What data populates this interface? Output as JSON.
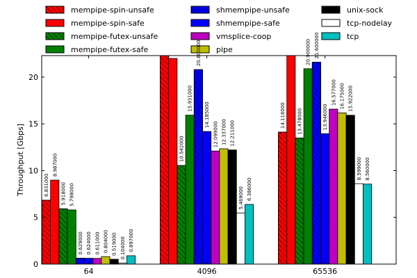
{
  "chart_data": {
    "type": "bar",
    "title": "",
    "xlabel": "",
    "ylabel": "Throughput [Gbps]",
    "categories": [
      "64",
      "4096",
      "65536"
    ],
    "ylim": [
      0,
      22.3
    ],
    "yticks": [
      0,
      5,
      10,
      15,
      20
    ],
    "grid": false,
    "legend_position": "top, 3 columns above plot",
    "series": [
      {
        "name": "mempipe-spin-unsafe",
        "color": "#ff0000",
        "hatch": true,
        "values": [
          6.831,
          22.3,
          14.116
        ],
        "labels": [
          "6.831000",
          "",
          "14.116000"
        ]
      },
      {
        "name": "mempipe-spin-safe",
        "color": "#ff0000",
        "hatch": false,
        "values": [
          8.987,
          22.0,
          22.3
        ],
        "labels": [
          "8.987000",
          "",
          ""
        ]
      },
      {
        "name": "mempipe-futex-unsafe",
        "color": "#008000",
        "hatch": true,
        "values": [
          5.918,
          10.542,
          13.478
        ],
        "labels": [
          "5.918000",
          "10.542000",
          "13.478000"
        ]
      },
      {
        "name": "mempipe-futex-safe",
        "color": "#008000",
        "hatch": false,
        "values": [
          5.798,
          15.931,
          20.9
        ],
        "labels": [
          "5.798000",
          "15.931000",
          "20.900000"
        ]
      },
      {
        "name": "shmempipe-unsafe",
        "color": "#0000ff",
        "hatch": true,
        "values": [
          0.629,
          20.8,
          21.6
        ],
        "labels": [
          "0.629000",
          "20.800000",
          "21.600000"
        ]
      },
      {
        "name": "shmempipe-safe",
        "color": "#0000ff",
        "hatch": false,
        "values": [
          0.624,
          14.185,
          13.946
        ],
        "labels": [
          "0.624000",
          "14.185000",
          "13.946000"
        ]
      },
      {
        "name": "vmsplice-coop",
        "color": "#bf00bf",
        "hatch": false,
        "values": [
          0.611,
          12.099,
          16.577
        ],
        "labels": [
          "0.611000",
          "12.099000",
          "16.577000"
        ]
      },
      {
        "name": "pipe",
        "color": "#bfbf00",
        "hatch": false,
        "values": [
          0.804,
          12.337,
          16.175
        ],
        "labels": [
          "0.804000",
          "12.337000",
          "16.175000"
        ]
      },
      {
        "name": "unix-sock",
        "color": "#000000",
        "hatch": false,
        "values": [
          0.519,
          12.211,
          15.922
        ],
        "labels": [
          "0.519000",
          "12.211000",
          "15.922000"
        ]
      },
      {
        "name": "tcp-nodelay",
        "color": "#ffffff",
        "hatch": false,
        "values": [
          0.104,
          5.469,
          8.599
        ],
        "labels": [
          "0.104000",
          "5.469000",
          "8.599000"
        ]
      },
      {
        "name": "tcp",
        "color": "#00bfbf",
        "hatch": false,
        "values": [
          0.897,
          6.386,
          8.56
        ],
        "labels": [
          "0.897000",
          "6.386000",
          "8.560000"
        ]
      }
    ]
  }
}
